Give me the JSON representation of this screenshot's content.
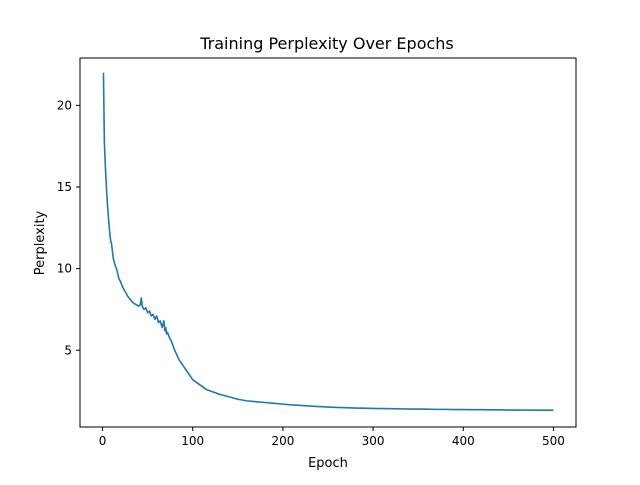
{
  "chart_data": {
    "type": "line",
    "title": "Training Perplexity Over Epochs",
    "xlabel": "Epoch",
    "ylabel": "Perplexity",
    "xlim": [
      -25,
      525
    ],
    "ylim": [
      0.3,
      22.9
    ],
    "xticks": [
      0,
      100,
      200,
      300,
      400,
      500
    ],
    "yticks": [
      5,
      10,
      15,
      20
    ],
    "grid": false,
    "legend": "none",
    "series": [
      {
        "color": "#1f77b4",
        "x": [
          1,
          2,
          3,
          4,
          5,
          6,
          7,
          8,
          9,
          10,
          12,
          14,
          16,
          18,
          20,
          22,
          25,
          28,
          31,
          34,
          37,
          40,
          42,
          43,
          44,
          46,
          48,
          50,
          52,
          54,
          56,
          58,
          60,
          62,
          64,
          66,
          68,
          69,
          70,
          71,
          72,
          74,
          76,
          78,
          80,
          85,
          90,
          95,
          100,
          105,
          110,
          115,
          120,
          125,
          130,
          140,
          150,
          160,
          170,
          180,
          190,
          200,
          210,
          220,
          230,
          240,
          250,
          260,
          270,
          280,
          290,
          300,
          310,
          320,
          330,
          340,
          350,
          360,
          370,
          380,
          390,
          400,
          410,
          420,
          430,
          440,
          450,
          460,
          470,
          480,
          490,
          500
        ],
        "y": [
          22.0,
          17.8,
          16.4,
          15.3,
          14.3,
          13.5,
          12.8,
          12.2,
          11.7,
          11.5,
          10.6,
          10.2,
          9.9,
          9.4,
          9.2,
          8.9,
          8.6,
          8.3,
          8.1,
          7.9,
          7.8,
          7.7,
          7.8,
          8.2,
          7.7,
          7.5,
          7.6,
          7.3,
          7.4,
          7.1,
          7.2,
          6.9,
          7.1,
          6.7,
          6.8,
          6.4,
          6.8,
          6.2,
          6.4,
          6.0,
          6.1,
          5.8,
          5.6,
          5.3,
          5.0,
          4.4,
          4.0,
          3.6,
          3.2,
          3.0,
          2.8,
          2.6,
          2.5,
          2.4,
          2.3,
          2.15,
          2.0,
          1.9,
          1.85,
          1.8,
          1.75,
          1.7,
          1.65,
          1.62,
          1.58,
          1.55,
          1.52,
          1.5,
          1.48,
          1.46,
          1.45,
          1.44,
          1.43,
          1.42,
          1.41,
          1.4,
          1.4,
          1.39,
          1.38,
          1.38,
          1.37,
          1.37,
          1.36,
          1.36,
          1.35,
          1.35,
          1.34,
          1.34,
          1.34,
          1.33,
          1.33,
          1.33
        ]
      }
    ]
  }
}
